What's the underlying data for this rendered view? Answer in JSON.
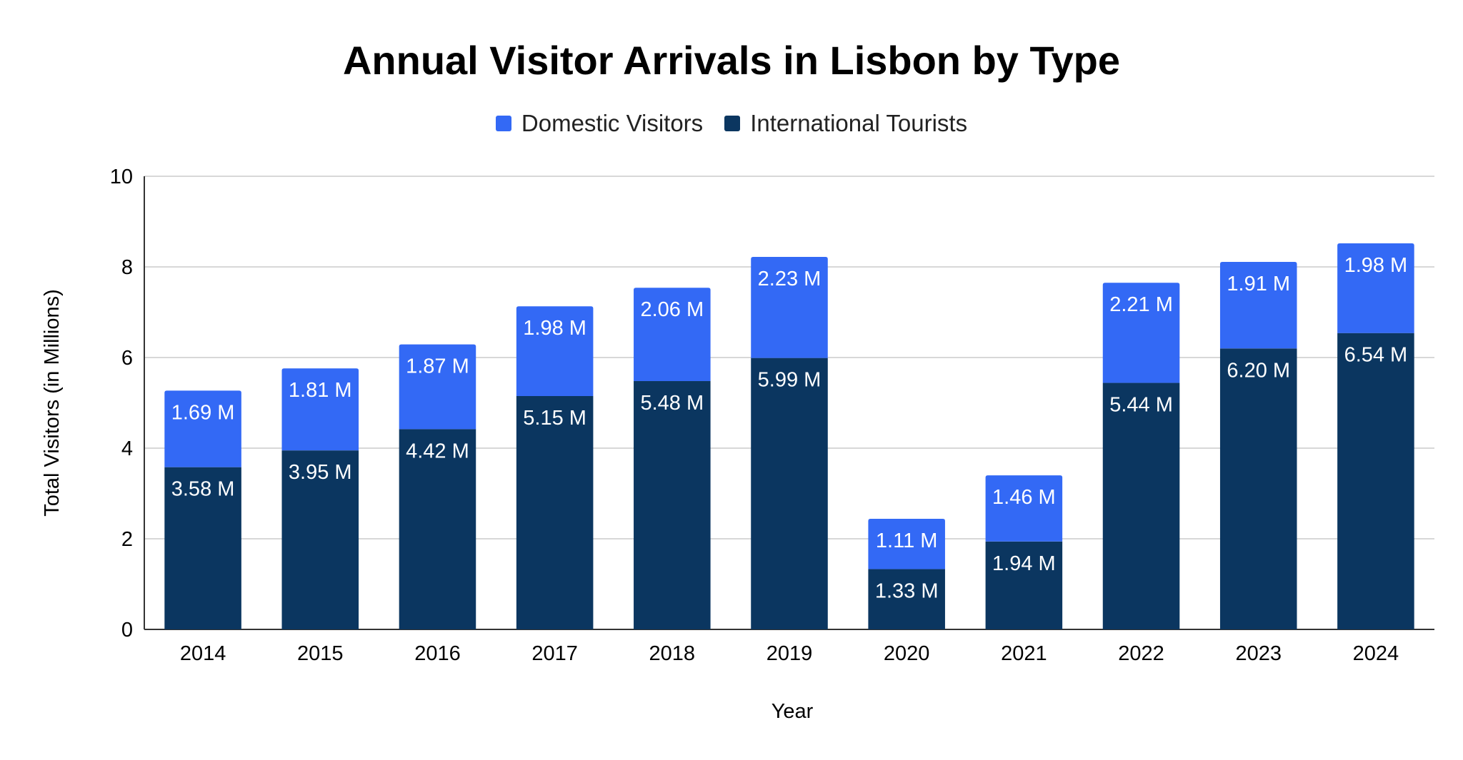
{
  "chart_data": {
    "type": "bar",
    "stacked": true,
    "title": "Annual Visitor Arrivals in Lisbon by Type",
    "xlabel": "Year",
    "ylabel": "Total Visitors (in Millions)",
    "ylim": [
      0,
      10
    ],
    "yticks": [
      "0",
      "2",
      "4",
      "6",
      "8",
      "10"
    ],
    "grid": true,
    "legend_position": "top-center",
    "categories": [
      "2014",
      "2015",
      "2016",
      "2017",
      "2018",
      "2019",
      "2020",
      "2021",
      "2022",
      "2023",
      "2024"
    ],
    "series": [
      {
        "name": "International Tourists",
        "color": "#0b3660",
        "values": [
          3.58,
          3.95,
          4.42,
          5.15,
          5.48,
          5.99,
          1.33,
          1.94,
          5.44,
          6.2,
          6.54
        ],
        "labels": [
          "3.58 M",
          "3.95 M",
          "4.42 M",
          "5.15 M",
          "5.48 M",
          "5.99 M",
          "1.33 M",
          "1.94 M",
          "5.44 M",
          "6.20 M",
          "6.54 M"
        ]
      },
      {
        "name": "Domestic Visitors",
        "color": "#3369f5",
        "values": [
          1.69,
          1.81,
          1.87,
          1.98,
          2.06,
          2.23,
          1.11,
          1.46,
          2.21,
          1.91,
          1.98
        ],
        "labels": [
          "1.69 M",
          "1.81 M",
          "1.87 M",
          "1.98 M",
          "2.06 M",
          "2.23 M",
          "1.11 M",
          "1.46 M",
          "2.21 M",
          "1.91 M",
          "1.98 M"
        ]
      }
    ],
    "legend_order": [
      "Domestic Visitors",
      "International Tourists"
    ]
  }
}
